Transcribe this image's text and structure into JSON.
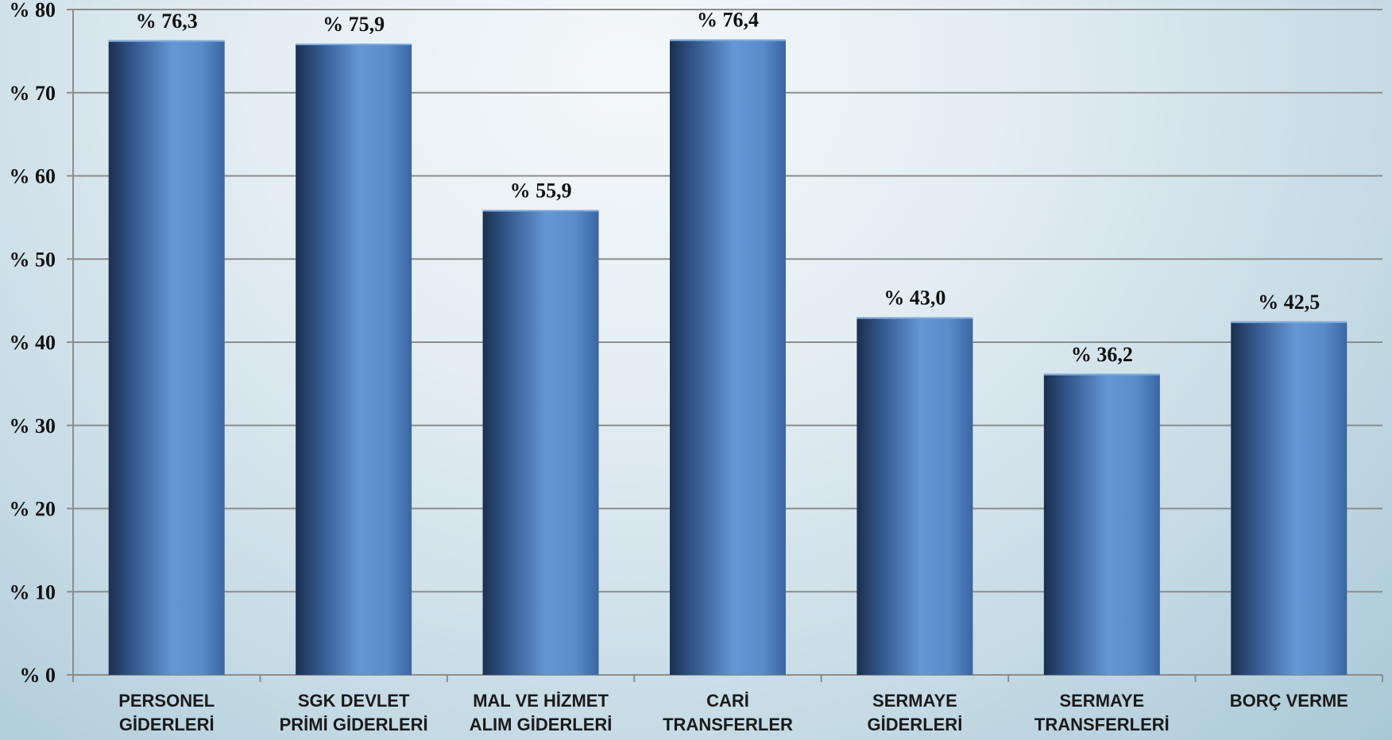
{
  "chart_data": {
    "type": "bar",
    "title": "",
    "xlabel": "",
    "ylabel": "",
    "ylim": [
      0,
      80
    ],
    "grid": true,
    "legend": "none",
    "y_ticks": [
      "% 0",
      "% 10",
      "% 20",
      "% 30",
      "% 40",
      "% 50",
      "% 60",
      "% 70",
      "% 80"
    ],
    "categories": [
      [
        "PERSONEL",
        "GİDERLERİ"
      ],
      [
        "SGK DEVLET",
        "PRİMİ GİDERLERİ"
      ],
      [
        "MAL VE HİZMET",
        "ALIM GİDERLERİ"
      ],
      [
        "CARİ",
        "TRANSFERLER"
      ],
      [
        "SERMAYE",
        "GİDERLERİ"
      ],
      [
        "SERMAYE",
        "TRANSFERLERİ"
      ],
      [
        "BORÇ VERME"
      ]
    ],
    "values": [
      76.3,
      75.9,
      55.9,
      76.4,
      43.0,
      36.2,
      42.5
    ],
    "value_labels": [
      "% 76,3",
      "% 75,9",
      "% 55,9",
      "% 76,4",
      "% 43,0",
      "% 36,2",
      "% 42,5"
    ],
    "colors": {
      "bar_dark": "#1c2f4f",
      "bar_mid": "#3f6dae",
      "bar_light": "#6497d6",
      "grid": "#8c8c8c",
      "axis": "#8c8c8c"
    }
  }
}
